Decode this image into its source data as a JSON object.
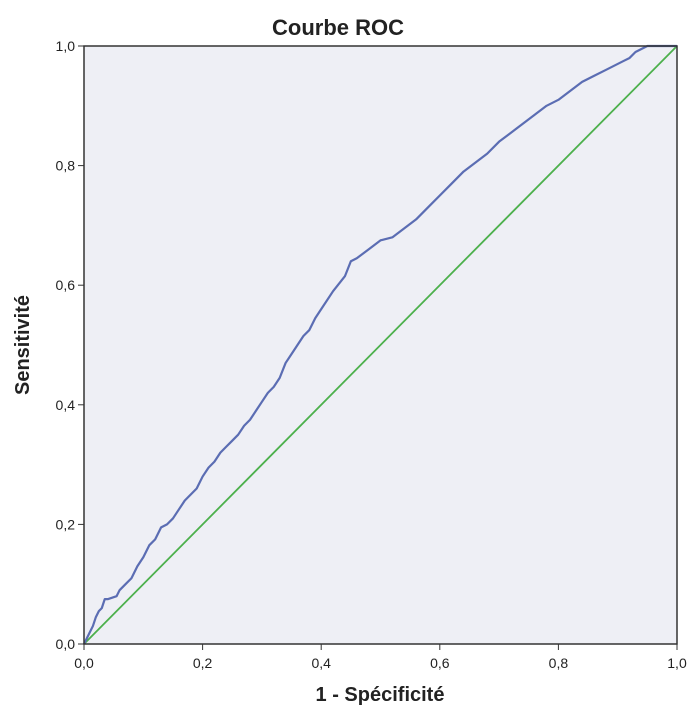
{
  "chart_data": {
    "type": "line",
    "title": "Courbe ROC",
    "xlabel": "1 - Spécificité",
    "ylabel": "Sensitivité",
    "xlim": [
      0,
      1
    ],
    "ylim": [
      0,
      1
    ],
    "x_ticks": [
      0,
      0.2,
      0.4,
      0.6,
      0.8,
      1.0
    ],
    "y_ticks": [
      0,
      0.2,
      0.4,
      0.6,
      0.8,
      1.0
    ],
    "x_tick_labels": [
      "0,0",
      "0,2",
      "0,4",
      "0,6",
      "0,8",
      "1,0"
    ],
    "y_tick_labels": [
      "0,0",
      "0,2",
      "0,4",
      "0,6",
      "0,8",
      "1,0"
    ],
    "grid": false,
    "background_color": "#eeeff5",
    "series": [
      {
        "color": "#5b6db3",
        "x": [
          0,
          0.005,
          0.01,
          0.015,
          0.02,
          0.025,
          0.03,
          0.035,
          0.04,
          0.055,
          0.06,
          0.07,
          0.08,
          0.09,
          0.1,
          0.11,
          0.12,
          0.125,
          0.13,
          0.14,
          0.15,
          0.16,
          0.17,
          0.18,
          0.19,
          0.2,
          0.21,
          0.22,
          0.23,
          0.24,
          0.25,
          0.26,
          0.27,
          0.28,
          0.29,
          0.3,
          0.31,
          0.32,
          0.33,
          0.34,
          0.35,
          0.36,
          0.37,
          0.38,
          0.39,
          0.4,
          0.42,
          0.44,
          0.45,
          0.46,
          0.48,
          0.5,
          0.52,
          0.54,
          0.56,
          0.57,
          0.58,
          0.6,
          0.62,
          0.64,
          0.66,
          0.68,
          0.7,
          0.72,
          0.74,
          0.76,
          0.78,
          0.8,
          0.82,
          0.84,
          0.86,
          0.88,
          0.9,
          0.91,
          0.92,
          0.93,
          0.94,
          0.95,
          0.96,
          0.97,
          0.98,
          0.99,
          1.0
        ],
        "y": [
          0,
          0.01,
          0.02,
          0.03,
          0.045,
          0.055,
          0.06,
          0.075,
          0.075,
          0.08,
          0.09,
          0.1,
          0.11,
          0.13,
          0.145,
          0.165,
          0.175,
          0.185,
          0.195,
          0.2,
          0.21,
          0.225,
          0.24,
          0.25,
          0.26,
          0.28,
          0.295,
          0.305,
          0.32,
          0.33,
          0.34,
          0.35,
          0.365,
          0.375,
          0.39,
          0.405,
          0.42,
          0.43,
          0.445,
          0.47,
          0.485,
          0.5,
          0.515,
          0.525,
          0.545,
          0.56,
          0.59,
          0.615,
          0.64,
          0.645,
          0.66,
          0.675,
          0.68,
          0.695,
          0.71,
          0.72,
          0.73,
          0.75,
          0.77,
          0.79,
          0.805,
          0.82,
          0.84,
          0.855,
          0.87,
          0.885,
          0.9,
          0.91,
          0.925,
          0.94,
          0.95,
          0.96,
          0.97,
          0.975,
          0.98,
          0.99,
          0.995,
          1.0,
          1.0,
          1.0,
          1.0,
          1.0,
          1.0
        ]
      },
      {
        "color": "#4cb04c",
        "x": [
          0,
          1
        ],
        "y": [
          0,
          1
        ]
      }
    ]
  }
}
